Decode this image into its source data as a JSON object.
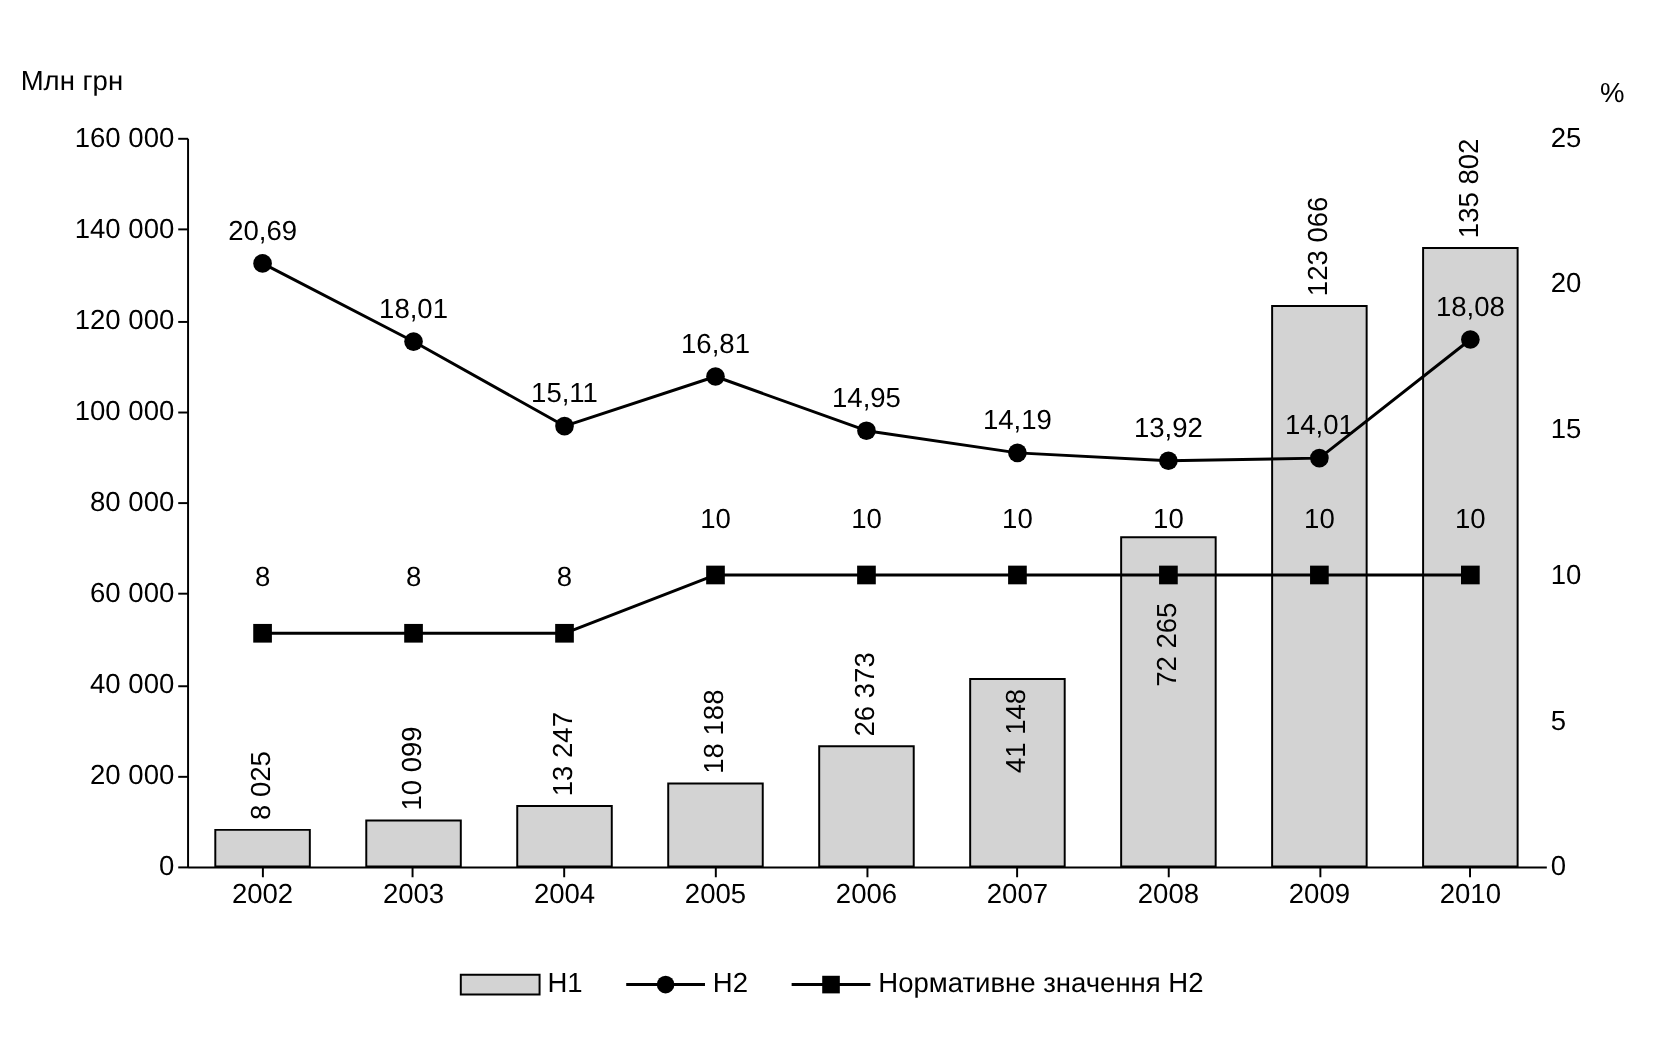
{
  "chart_data": {
    "type": "bar",
    "ylabel": "Млн грн",
    "y2label": "%",
    "legend": "bottom",
    "categories": [
      "2002",
      "2003",
      "2004",
      "2005",
      "2006",
      "2007",
      "2008",
      "2009",
      "2010"
    ],
    "ylim": [
      0,
      160000
    ],
    "yticks": [
      0,
      {
        "value": 20000,
        "label": "20 000"
      },
      {
        "value": 40000,
        "label": "40 000"
      },
      {
        "value": 60000,
        "label": "60 000"
      },
      {
        "value": 80000,
        "label": "80 000"
      },
      {
        "value": 100000,
        "label": "100 000"
      },
      {
        "value": 120000,
        "label": "120 000"
      },
      {
        "value": 140000,
        "label": "140 000"
      },
      {
        "value": 160000,
        "label": "160 000"
      }
    ],
    "y2lim": [
      0,
      25
    ],
    "y2ticks": [
      0,
      5,
      10,
      15,
      20,
      25
    ],
    "series": [
      {
        "name": "Н1",
        "type": "bar",
        "color": "#d3d3d3",
        "values": [
          8025,
          10099,
          13247,
          18188,
          26373,
          41148,
          72265,
          123066,
          135802
        ],
        "value_labels": [
          "8 025",
          "10 099",
          "13 247",
          "18 188",
          "26 373",
          "41 148",
          "72 265",
          "123 066",
          "135 802"
        ]
      },
      {
        "name": "Н2",
        "type": "line",
        "axis": "y2",
        "marker": "circle",
        "line_style": "solid",
        "color": "#000000",
        "values": [
          20.69,
          18.01,
          15.11,
          16.81,
          14.95,
          14.19,
          13.92,
          14.01,
          18.08
        ],
        "value_labels": [
          "20,69",
          "18,01",
          "15,11",
          "16,81",
          "14,95",
          "14,19",
          "13,92",
          "14,01",
          "18,08"
        ]
      },
      {
        "name": "Нормативне значення Н2",
        "type": "line",
        "axis": "y2",
        "marker": "square",
        "line_style": "solid",
        "color": "#000000",
        "values": [
          8,
          8,
          8,
          10,
          10,
          10,
          10,
          10,
          10
        ],
        "value_labels": [
          "8",
          "8",
          "8",
          "10",
          "10",
          "10",
          "10",
          "10",
          "10"
        ]
      }
    ]
  }
}
